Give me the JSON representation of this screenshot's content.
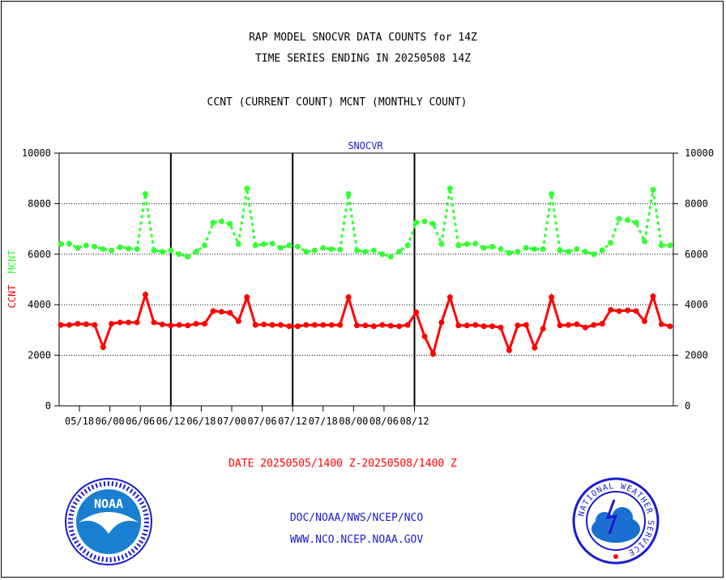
{
  "header": {
    "line1": "RAP MODEL SNOCVR DATA COUNTS for 14Z",
    "line2": "TIME SERIES ENDING IN 20250508 14Z",
    "line3": "CCNT (CURRENT COUNT) MCNT (MONTHLY COUNT)"
  },
  "footer": {
    "date_range": "DATE 20250505/1400 Z-20250508/1400 Z",
    "org_path": "DOC/NOAA/NWS/NCEP/NCO",
    "website": "WWW.NCO.NCEP.NOAA.GOV",
    "noaa_logo_text": "NOAA",
    "nws_logo_text": "NATIONAL WEATHER SERVICE"
  },
  "colors": {
    "ccnt": "#ff0000",
    "mcnt": "#33ff33",
    "title": "#1a1ad0"
  },
  "chart_data": {
    "type": "line",
    "title": "SNOCVR",
    "ylabel_parts": [
      {
        "text": "CCNT",
        "color": "#ff0000"
      },
      {
        "text": "MCNT",
        "color": "#33ff33"
      }
    ],
    "ylim": [
      0,
      10000
    ],
    "yticks": [
      0,
      2000,
      4000,
      6000,
      8000,
      10000
    ],
    "grid": true,
    "xticks": [
      "05/18",
      "06/00",
      "06/06",
      "06/12",
      "06/18",
      "07/00",
      "07/06",
      "07/12",
      "07/18",
      "08/00",
      "08/06",
      "08/12"
    ],
    "series": [
      {
        "name": "MCNT",
        "color": "#33ff33",
        "style": "dotted",
        "values": [
          6400,
          6420,
          6250,
          6350,
          6300,
          6200,
          6150,
          6280,
          6220,
          6200,
          8380,
          6150,
          6100,
          6150,
          6000,
          5900,
          6100,
          6350,
          7250,
          7300,
          7200,
          6400,
          8600,
          6350,
          6400,
          6420,
          6250,
          6350,
          6300,
          6100,
          6150,
          6250,
          6200,
          6180,
          8380,
          6150,
          6100,
          6150,
          6000,
          5900,
          6100,
          6350,
          7250,
          7300,
          7200,
          6400,
          8600,
          6350,
          6400,
          6420,
          6250,
          6300,
          6200,
          6050,
          6100,
          6250,
          6200,
          6200,
          8380,
          6150,
          6100,
          6200,
          6100,
          6000,
          6150,
          6450,
          7400,
          7350,
          7250,
          6500,
          8550,
          6350,
          6350
        ]
      },
      {
        "name": "CCNT",
        "color": "#ff0000",
        "style": "solid",
        "values": [
          3200,
          3200,
          3250,
          3230,
          3200,
          2320,
          3250,
          3300,
          3300,
          3300,
          4400,
          3300,
          3220,
          3180,
          3200,
          3180,
          3250,
          3250,
          3750,
          3720,
          3680,
          3350,
          4300,
          3200,
          3220,
          3200,
          3200,
          3150,
          3150,
          3200,
          3200,
          3200,
          3200,
          3200,
          4300,
          3180,
          3180,
          3150,
          3200,
          3170,
          3150,
          3200,
          3700,
          2750,
          2050,
          3300,
          4300,
          3180,
          3180,
          3200,
          3150,
          3150,
          3100,
          2200,
          3180,
          3200,
          2300,
          3050,
          4300,
          3180,
          3200,
          3230,
          3100,
          3200,
          3250,
          3800,
          3750,
          3780,
          3750,
          3350,
          4330,
          3230,
          3150
        ]
      }
    ],
    "xlim": [
      -0.2,
      72.4
    ],
    "x_tick_index": [
      2.2,
      5.8,
      9.4,
      13.0,
      16.6,
      20.2,
      23.8,
      27.4,
      31.0,
      34.6,
      38.2,
      41.8
    ],
    "annotations": []
  }
}
